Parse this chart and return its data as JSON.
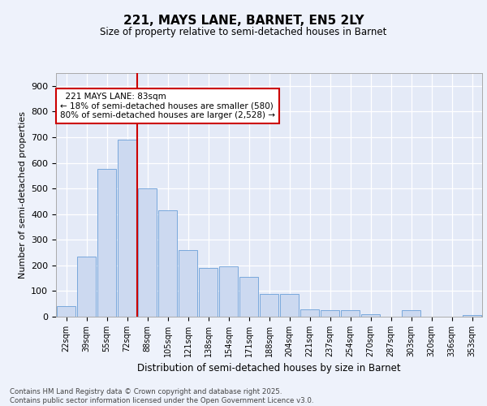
{
  "title": "221, MAYS LANE, BARNET, EN5 2LY",
  "subtitle": "Size of property relative to semi-detached houses in Barnet",
  "xlabel": "Distribution of semi-detached houses by size in Barnet",
  "ylabel": "Number of semi-detached properties",
  "property_label": "221 MAYS LANE: 83sqm",
  "property_bin_index": 3,
  "smaller_pct": 18,
  "smaller_count": 580,
  "larger_pct": 80,
  "larger_count": 2528,
  "bar_color": "#ccd9f0",
  "bar_edge_color": "#6a9fd8",
  "vline_color": "#cc0000",
  "annotation_box_color": "#cc0000",
  "background_color": "#eef2fb",
  "plot_bg_color": "#e4eaf7",
  "footer_text": "Contains HM Land Registry data © Crown copyright and database right 2025.\nContains public sector information licensed under the Open Government Licence v3.0.",
  "categories": [
    "22sqm",
    "39sqm",
    "55sqm",
    "72sqm",
    "88sqm",
    "105sqm",
    "121sqm",
    "138sqm",
    "154sqm",
    "171sqm",
    "188sqm",
    "204sqm",
    "221sqm",
    "237sqm",
    "254sqm",
    "270sqm",
    "287sqm",
    "303sqm",
    "320sqm",
    "336sqm",
    "353sqm"
  ],
  "values": [
    40,
    235,
    575,
    690,
    500,
    415,
    260,
    190,
    195,
    155,
    90,
    90,
    30,
    25,
    25,
    10,
    0,
    25,
    0,
    0,
    5
  ],
  "ylim": [
    0,
    950
  ],
  "yticks": [
    0,
    100,
    200,
    300,
    400,
    500,
    600,
    700,
    800,
    900
  ]
}
